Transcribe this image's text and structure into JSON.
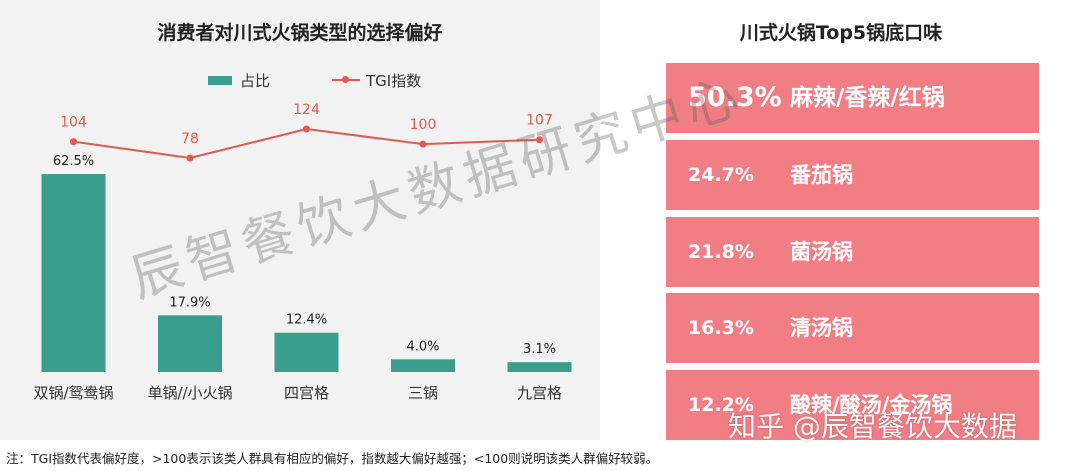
{
  "left_chart": {
    "title": "消费者对川式火锅类型的选择偏好",
    "legend": {
      "bar": "占比",
      "line": "TGI指数"
    },
    "colors": {
      "bar": "#3a9e8c",
      "line": "#e05a50",
      "tgi_label": "#e05a50",
      "background": "#f2f2f2"
    },
    "chart_data": {
      "type": "bar",
      "categories": [
        "双锅/鸳鸯锅",
        "单锅//小火锅",
        "四宫格",
        "三锅",
        "九宫格"
      ],
      "series": [
        {
          "name": "占比",
          "type": "bar",
          "values": [
            62.5,
            17.9,
            12.4,
            4.0,
            3.1
          ],
          "labels": [
            "62.5%",
            "17.9%",
            "12.4%",
            "4.0%",
            "3.1%"
          ]
        },
        {
          "name": "TGI指数",
          "type": "line",
          "values": [
            104,
            78,
            124,
            100,
            107
          ],
          "labels": [
            "104",
            "78",
            "124",
            "100",
            "107"
          ]
        }
      ],
      "title": "消费者对川式火锅类型的选择偏好",
      "xlabel": "",
      "ylabel": ""
    }
  },
  "right_panel": {
    "title": "川式火锅Top5锅底口味",
    "box_color": "#f17e84",
    "items": [
      {
        "percent": "50.3%",
        "name": "麻辣/香辣/红锅"
      },
      {
        "percent": "24.7%",
        "name": "番茄锅"
      },
      {
        "percent": "21.8%",
        "name": "菌汤锅"
      },
      {
        "percent": "16.3%",
        "name": "清汤锅"
      },
      {
        "percent": "12.2%",
        "name": "酸辣/酸汤/金汤锅"
      }
    ]
  },
  "watermark": "辰智餐饮大数据研究中心",
  "zhihu_watermark": "知乎 @辰智餐饮大数据",
  "footnote": "注：TGI指数代表偏好度，>100表示该类人群具有相应的偏好，指数越大偏好越强；<100则说明该类人群偏好较弱。"
}
